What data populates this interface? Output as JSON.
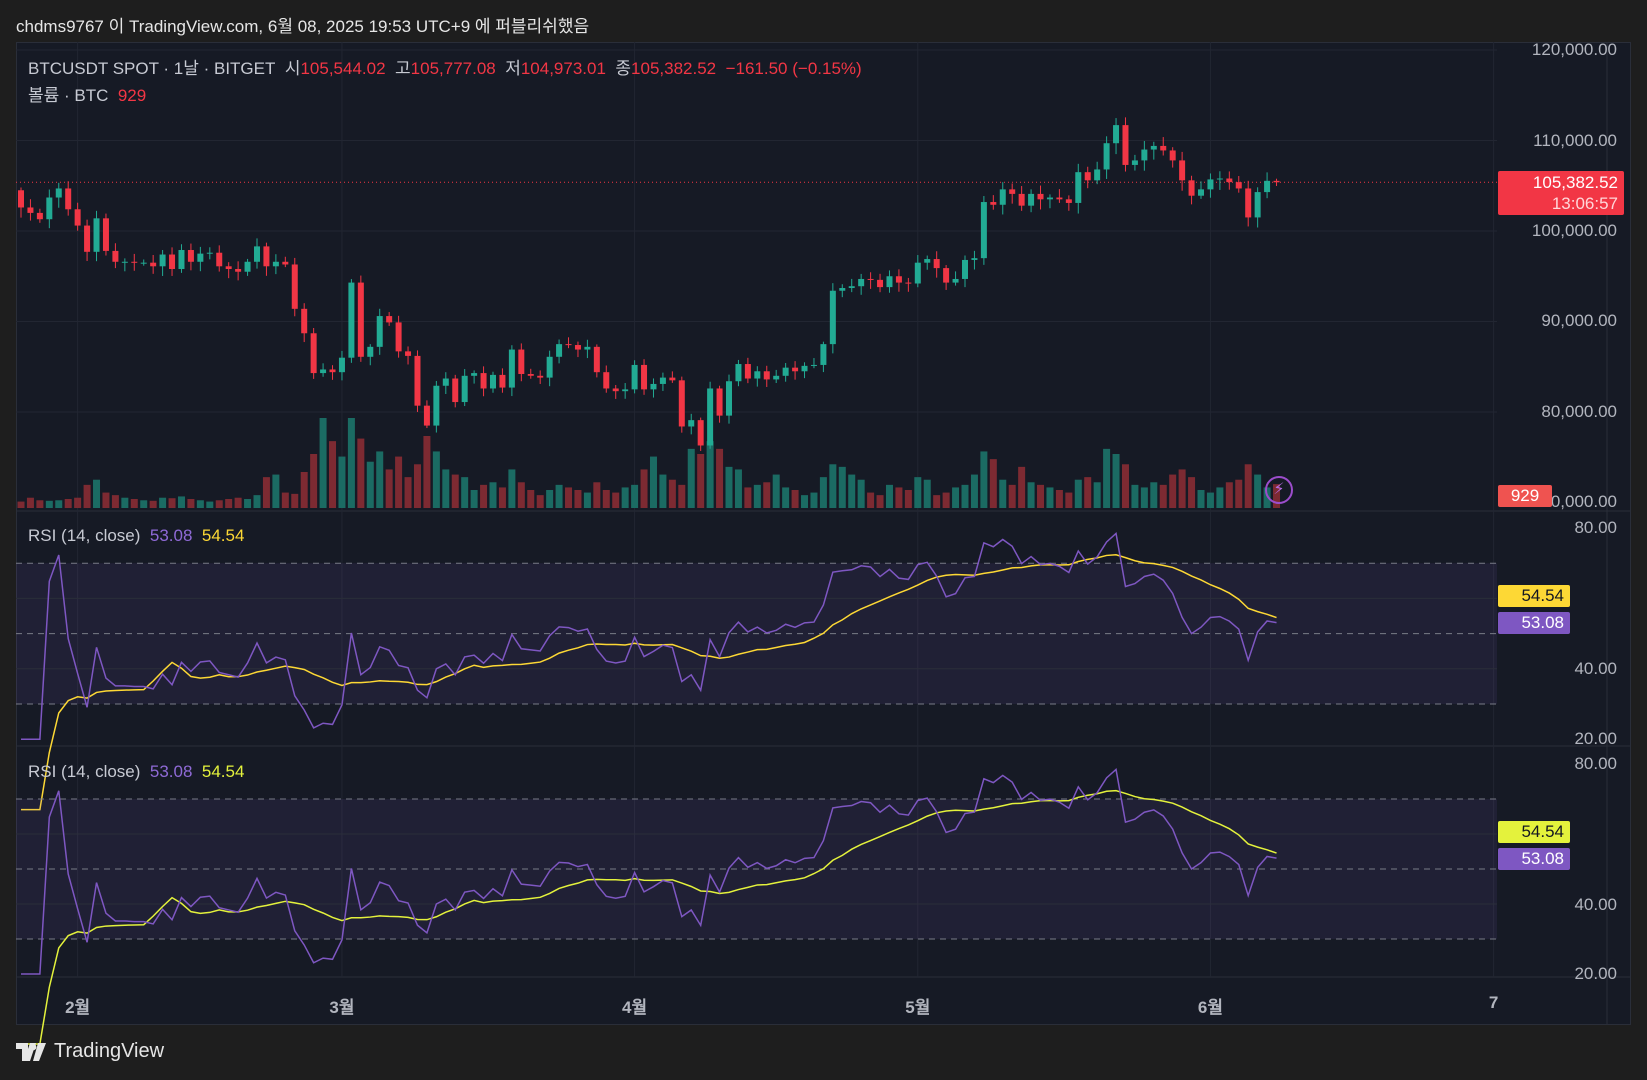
{
  "header": {
    "publish_text": "chdms9767 이 TradingView.com, 6월 08, 2025 19:53 UTC+9 에 퍼블리쉬했음"
  },
  "legend": {
    "symbol": "BTCUSDT SPOT · 1날 · BITGET",
    "open_label": "시",
    "open": "105,544.02",
    "high_label": "고",
    "high": "105,777.08",
    "low_label": "저",
    "low": "104,973.01",
    "close_label": "종",
    "close": "105,382.52",
    "change": "−161.50 (−0.15%)",
    "volume_label": "볼륨 · BTC",
    "volume": "929"
  },
  "rsi_panes": [
    {
      "label": "RSI (14, close)",
      "rsi": "53.08",
      "ma": "54.54"
    },
    {
      "label": "RSI (14, close)",
      "rsi": "53.08",
      "ma": "54.54"
    }
  ],
  "price_axis": [
    "120,000.00",
    "110,000.00",
    "100,000.00",
    "90,000.00",
    "80,000.00",
    "70,000.00"
  ],
  "rsi_axis": [
    "80.00",
    "40.00",
    "20.00"
  ],
  "last_price_tag": {
    "price": "105,382.52",
    "countdown": "13:06:57"
  },
  "volume_tag": "929",
  "time_axis": [
    "2월",
    "3월",
    "4월",
    "5월",
    "6월",
    "7"
  ],
  "footer": {
    "brand": "TradingView"
  },
  "colors": {
    "up": "#22ab94",
    "down": "#f23645",
    "up_vol": "#1b6b63",
    "down_vol": "#7d2a32",
    "rsi": "#7e57c2",
    "rsi_ma": "#fdd835",
    "rsi_ma2": "#e4f23c"
  },
  "chart_data": {
    "type": "candlestick",
    "symbol": "BTCUSDT",
    "interval": "1D",
    "start_date": "2025-01-26",
    "end_date": "2025-06-08",
    "ylim": [
      70000,
      120000
    ],
    "close": [
      102.6,
      102.0,
      101.3,
      103.7,
      104.7,
      102.4,
      100.6,
      97.7,
      101.4,
      97.8,
      96.6,
      96.6,
      96.5,
      96.5,
      96.1,
      97.4,
      95.8,
      97.9,
      96.6,
      97.5,
      97.6,
      96.1,
      95.8,
      95.5,
      96.6,
      98.3,
      96.1,
      96.6,
      96.3,
      91.4,
      88.7,
      84.3,
      84.7,
      84.4,
      86.0,
      94.3,
      86.1,
      87.2,
      90.6,
      89.9,
      86.7,
      86.2,
      80.7,
      78.5,
      82.9,
      83.7,
      81.1,
      84.0,
      84.3,
      82.6,
      84.1,
      82.7,
      86.9,
      84.2,
      84.0,
      83.8,
      86.1,
      87.5,
      87.4,
      86.9,
      87.2,
      84.4,
      82.6,
      82.3,
      82.5,
      85.2,
      82.5,
      83.1,
      83.8,
      83.5,
      78.4,
      79.1,
      76.3,
      82.6,
      79.6,
      83.4,
      85.3,
      83.7,
      84.5,
      83.6,
      84.0,
      84.9,
      84.5,
      85.1,
      85.2,
      87.5,
      93.4,
      93.7,
      93.9,
      94.7,
      94.6,
      93.8,
      95.0,
      94.3,
      94.2,
      96.5,
      96.9,
      95.9,
      94.3,
      94.7,
      96.8,
      97.0,
      103.2,
      102.9,
      104.6,
      104.1,
      102.8,
      104.1,
      103.5,
      103.7,
      103.5,
      103.1,
      106.5,
      105.6,
      106.8,
      109.7,
      111.7,
      107.3,
      107.8,
      109.0,
      109.4,
      108.9,
      107.8,
      105.6,
      103.9,
      104.6,
      105.7,
      105.8,
      105.4,
      104.7,
      101.5,
      104.3,
      105.544,
      105.3825
    ],
    "close_unit": "thousand USDT",
    "volume": [
      250,
      400,
      300,
      280,
      300,
      350,
      400,
      900,
      1100,
      600,
      500,
      400,
      350,
      300,
      280,
      400,
      380,
      450,
      350,
      300,
      250,
      300,
      350,
      400,
      350,
      500,
      1200,
      1300,
      600,
      550,
      1400,
      2100,
      3500,
      2600,
      2000,
      3500,
      2700,
      1800,
      2200,
      1500,
      2000,
      1200,
      1700,
      2800,
      2200,
      1500,
      1300,
      1200,
      700,
      900,
      1000,
      800,
      1500,
      1000,
      700,
      500,
      700,
      900,
      800,
      700,
      600,
      1000,
      700,
      600,
      800,
      900,
      1500,
      2000,
      1300,
      1100,
      900,
      2300,
      2100,
      2600,
      2300,
      1600,
      1500,
      800,
      900,
      1000,
      1300,
      800,
      700,
      500,
      600,
      1200,
      1700,
      1600,
      1300,
      1100,
      600,
      500,
      900,
      800,
      700,
      1200,
      1100,
      500,
      600,
      800,
      900,
      1300,
      2200,
      1900,
      1100,
      900,
      1600,
      1000,
      900,
      800,
      700,
      600,
      1100,
      1200,
      1000,
      2300,
      2100,
      1700,
      900,
      800,
      1000,
      900,
      1300,
      1500,
      1200,
      700,
      600,
      800,
      1000,
      1100,
      1700,
      1300,
      800,
      929
    ],
    "month_start_index": [
      6,
      34,
      65,
      95,
      126,
      156
    ],
    "rsi_period": 14,
    "rsi_ma_period": 14,
    "rsi_bands": [
      70,
      50,
      30
    ],
    "rsi_ylim": [
      20,
      80
    ]
  }
}
